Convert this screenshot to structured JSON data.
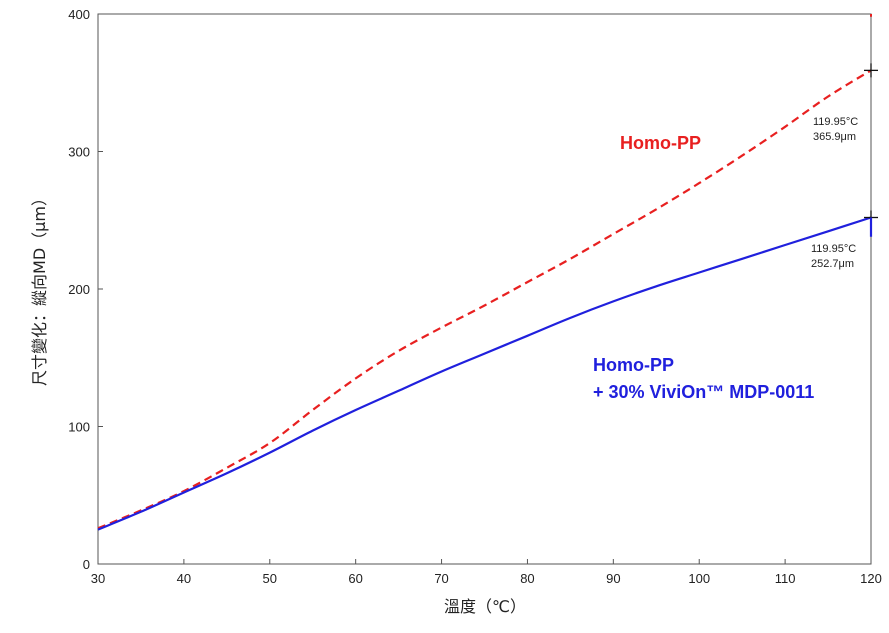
{
  "chart_data": {
    "type": "line",
    "title": "",
    "xlabel": "溫度（℃）",
    "ylabel": "尺寸變化：縱向MD（μm）",
    "xlim": [
      30,
      120
    ],
    "ylim": [
      0,
      400
    ],
    "x_ticks": [
      30,
      40,
      50,
      60,
      70,
      80,
      90,
      100,
      110,
      120
    ],
    "y_ticks": [
      0,
      100,
      200,
      300,
      400
    ],
    "x_tick_labels": [
      "30",
      "40",
      "50",
      "60",
      "70",
      "80",
      "90",
      "100",
      "110",
      "120"
    ],
    "y_tick_labels": [
      "0",
      "100",
      "200",
      "300",
      "400"
    ],
    "grid": false,
    "series": [
      {
        "name": "Homo-PP",
        "color": "#e82020",
        "style": "dashed",
        "x": [
          30,
          35,
          40,
          45,
          50,
          55,
          60,
          65,
          70,
          75,
          80,
          85,
          90,
          95,
          100,
          105,
          110,
          115,
          120
        ],
        "y": [
          26,
          39,
          53,
          70,
          88,
          112,
          135,
          155,
          172,
          188,
          205,
          222,
          240,
          258,
          277,
          297,
          318,
          340,
          359
        ]
      },
      {
        "name": "Homo-PP + 30% ViviOn™ MDP-0011",
        "color": "#2020dd",
        "style": "solid",
        "x": [
          30,
          35,
          40,
          45,
          50,
          55,
          60,
          65,
          70,
          75,
          80,
          85,
          90,
          95,
          100,
          105,
          110,
          115,
          120
        ],
        "y": [
          25,
          38,
          52,
          66,
          81,
          97,
          112,
          126,
          140,
          153,
          166,
          179,
          191,
          202,
          212,
          222,
          232,
          242,
          252
        ]
      }
    ],
    "annotations": [
      {
        "line1": "119.95°C",
        "line2": "365.9μm"
      },
      {
        "line1": "119.95°C",
        "line2": "252.7μm"
      }
    ],
    "series_labels": {
      "red": "Homo-PP",
      "blue_line1": "Homo-PP",
      "blue_line2": "+ 30% ViviOn™ MDP-0011"
    }
  }
}
